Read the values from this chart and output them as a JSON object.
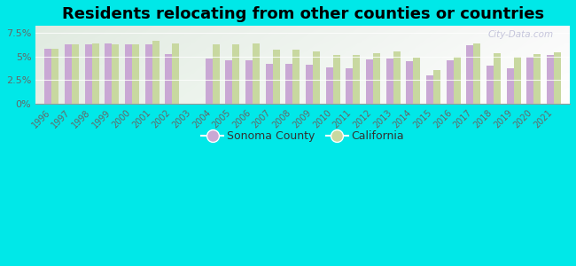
{
  "title": "Residents relocating from other counties or countries",
  "years": [
    1996,
    1997,
    1998,
    1999,
    2000,
    2001,
    2002,
    2003,
    2004,
    2005,
    2006,
    2007,
    2008,
    2009,
    2010,
    2011,
    2012,
    2013,
    2014,
    2015,
    2016,
    2017,
    2018,
    2019,
    2020,
    2021
  ],
  "sonoma": [
    5.8,
    6.3,
    6.3,
    6.4,
    6.3,
    6.3,
    5.2,
    null,
    4.8,
    4.6,
    4.6,
    4.2,
    4.2,
    4.1,
    3.8,
    3.7,
    4.7,
    4.8,
    4.5,
    3.0,
    4.6,
    6.2,
    4.0,
    3.7,
    5.0,
    5.1
  ],
  "california": [
    5.8,
    6.3,
    6.4,
    6.3,
    6.3,
    6.6,
    6.4,
    null,
    6.3,
    6.3,
    6.4,
    5.7,
    5.7,
    5.5,
    5.1,
    5.1,
    5.3,
    5.5,
    4.9,
    3.6,
    5.0,
    6.4,
    5.3,
    5.0,
    5.2,
    5.4
  ],
  "sonoma_color": "#c9a8d4",
  "california_color": "#c8d8a0",
  "bg_color": "#00e8e8",
  "yticks": [
    0,
    2.5,
    5.0,
    7.5
  ],
  "ylim": [
    0,
    8.2
  ],
  "title_fontsize": 13,
  "bar_width": 0.35,
  "legend_marker_color_sonoma": "#c9a8d4",
  "legend_marker_color_ca": "#c8d8a0",
  "watermark": "City-Data.com"
}
